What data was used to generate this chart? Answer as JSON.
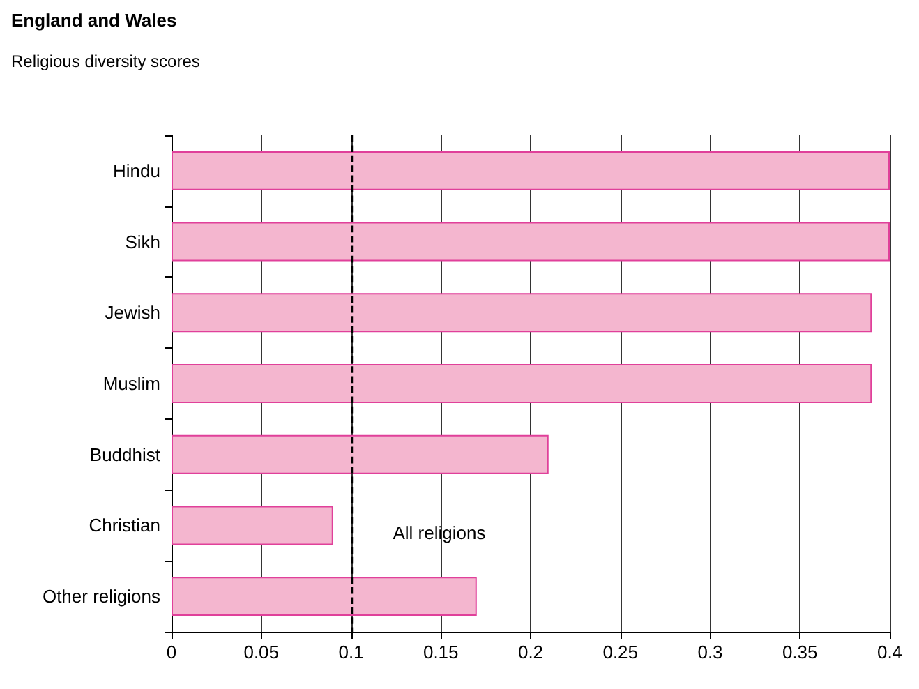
{
  "chart_data": {
    "type": "bar",
    "orientation": "horizontal",
    "title": "England and Wales",
    "subtitle": "Religious diversity scores",
    "categories": [
      "Hindu",
      "Sikh",
      "Jewish",
      "Muslim",
      "Buddhist",
      "Christian",
      "Other religions"
    ],
    "values": [
      0.4,
      0.4,
      0.39,
      0.39,
      0.21,
      0.09,
      0.17
    ],
    "color": "#f4b6cf",
    "xlim": [
      0,
      0.4
    ],
    "xticks": [
      0,
      0.05,
      0.1,
      0.15,
      0.2,
      0.25,
      0.3,
      0.35,
      0.4
    ],
    "grid": "x",
    "ref_lines": [
      {
        "axis": "x",
        "value": 0.1,
        "label": "All religions",
        "line_style": "dashed",
        "color": "#000000"
      }
    ]
  }
}
